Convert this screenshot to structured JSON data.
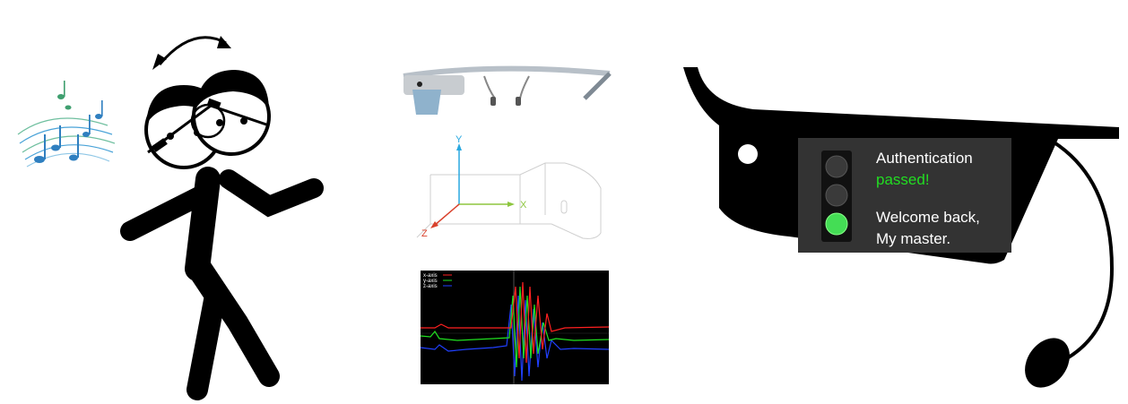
{
  "axes_diagram": {
    "x_label": "X",
    "y_label": "Y",
    "z_label": "Z",
    "x_color": "#8dc63f",
    "y_color": "#29a8e0",
    "z_color": "#d9412c"
  },
  "signal_plot": {
    "legend": [
      "x-axis",
      "y-axis",
      "z-axis"
    ],
    "series_colors": [
      "#ff2020",
      "#20e020",
      "#2040ff"
    ],
    "background": "#000000"
  },
  "glass_display": {
    "line1": "Authentication",
    "line2": "passed!",
    "line3": "Welcome back,",
    "line4": "My master.",
    "passed_color": "#22dd22",
    "traffic_light": [
      "off",
      "off",
      "green"
    ]
  },
  "icons": [
    "music-notes-icon",
    "rotate-arrow-icon",
    "head-icon",
    "stick-figure-icon",
    "google-glass-icon"
  ]
}
